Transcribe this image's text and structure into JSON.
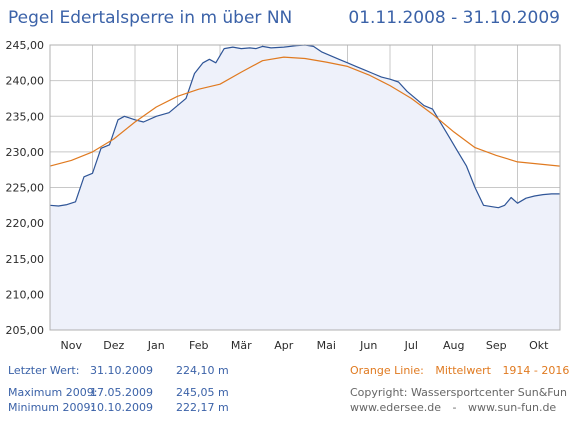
{
  "header": {
    "title": "Pegel Edertalsperre in m über NN",
    "date_range": "01.11.2008 - 31.10.2009"
  },
  "info": {
    "letzter": {
      "label": "Letzter Wert:",
      "date": "31.10.2009",
      "value": "224,10 m"
    },
    "maximum": {
      "label": "Maximum 2009:",
      "date": "17.05.2009",
      "value": "245,05 m"
    },
    "minimum": {
      "label": "Minimum  2009:",
      "date": "10.10.2009",
      "value": "222,17 m"
    }
  },
  "legend": {
    "label": "Orange Linie:",
    "text": "Mittelwert",
    "years": "1914 - 2016"
  },
  "footer": {
    "copyright": "Copyright: Wassersportcenter Sun&Fun",
    "site1": "www.edersee.de",
    "sep": "-",
    "site2": "www.sun-fun.de"
  },
  "colors": {
    "series_2009": "#2f5597",
    "mean": "#e07a20",
    "fill": "#eef1fa",
    "grid": "#c8c8c8",
    "title": "#3b62a8"
  },
  "chart_data": {
    "type": "line",
    "xlabel": "",
    "ylabel": "",
    "ylim": [
      205,
      245
    ],
    "yticks": [
      "245,00",
      "240,00",
      "235,00",
      "230,00",
      "225,00",
      "220,00",
      "215,00",
      "210,00",
      "205,00"
    ],
    "ytick_values": [
      245,
      240,
      235,
      230,
      225,
      220,
      215,
      210,
      205
    ],
    "categories": [
      "Nov",
      "Dez",
      "Jan",
      "Feb",
      "Mär",
      "Apr",
      "Mai",
      "Jun",
      "Jul",
      "Aug",
      "Sep",
      "Okt"
    ],
    "grid": true,
    "series": [
      {
        "name": "2009",
        "color": "#2f5597",
        "fill": true,
        "x": [
          0,
          0.2,
          0.4,
          0.6,
          0.8,
          1.0,
          1.2,
          1.4,
          1.6,
          1.75,
          2.0,
          2.2,
          2.5,
          2.8,
          3.0,
          3.2,
          3.4,
          3.6,
          3.75,
          3.9,
          4.1,
          4.3,
          4.5,
          4.7,
          4.85,
          5.0,
          5.2,
          5.5,
          5.8,
          6.0,
          6.2,
          6.4,
          6.6,
          6.8,
          7.0,
          7.2,
          7.4,
          7.6,
          7.8,
          8.0,
          8.2,
          8.4,
          8.6,
          8.8,
          9.0,
          9.2,
          9.4,
          9.6,
          9.8,
          10.0,
          10.2,
          10.4,
          10.55,
          10.7,
          10.85,
          11.0,
          11.2,
          11.4,
          11.6,
          11.8,
          12.0
        ],
        "values": [
          222.5,
          222.4,
          222.6,
          223.0,
          226.5,
          227.0,
          230.5,
          231.0,
          234.5,
          235.0,
          234.5,
          234.2,
          235.0,
          235.5,
          236.5,
          237.5,
          241.0,
          242.5,
          243.0,
          242.5,
          244.5,
          244.7,
          244.5,
          244.6,
          244.5,
          244.8,
          244.6,
          244.7,
          244.9,
          245.0,
          244.8,
          244.0,
          243.5,
          243.0,
          242.5,
          242.0,
          241.5,
          241.0,
          240.5,
          240.2,
          239.8,
          238.5,
          237.5,
          236.5,
          236.0,
          234.0,
          232.0,
          230.0,
          228.0,
          225.0,
          222.5,
          222.3,
          222.17,
          222.5,
          223.6,
          222.8,
          223.5,
          223.8,
          224.0,
          224.1,
          224.1
        ]
      },
      {
        "name": "Mittelwert 1914 - 2016",
        "color": "#e07a20",
        "fill": false,
        "x": [
          0,
          0.5,
          1.0,
          1.5,
          2.0,
          2.5,
          3.0,
          3.5,
          4.0,
          4.5,
          5.0,
          5.5,
          6.0,
          6.5,
          7.0,
          7.5,
          8.0,
          8.5,
          9.0,
          9.5,
          10.0,
          10.5,
          11.0,
          11.5,
          12.0
        ],
        "values": [
          228.0,
          228.8,
          230.0,
          231.8,
          234.2,
          236.3,
          237.8,
          238.8,
          239.5,
          241.2,
          242.8,
          243.3,
          243.1,
          242.6,
          242.0,
          240.8,
          239.3,
          237.5,
          235.3,
          232.8,
          230.6,
          229.5,
          228.6,
          228.3,
          228.0
        ]
      }
    ]
  }
}
